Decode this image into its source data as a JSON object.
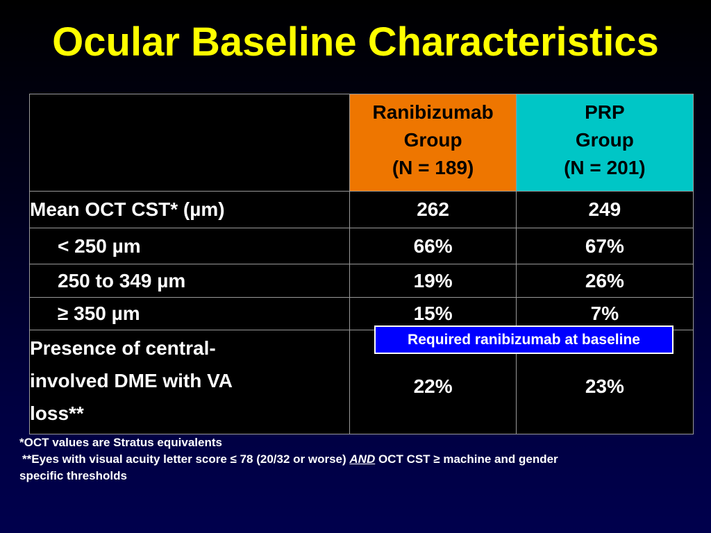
{
  "title": "Ocular Baseline Characteristics",
  "table": {
    "columns": [
      {
        "line1": "Ranibizumab",
        "line2": "Group",
        "line3": "(N = 189)"
      },
      {
        "line1": "PRP",
        "line2": "Group",
        "line3": "(N = 201)"
      }
    ],
    "rows": [
      {
        "label": "Mean OCT CST* (µm)",
        "ranibizumab": "262",
        "prp": "249"
      },
      {
        "label": "< 250 µm",
        "ranibizumab": "66%",
        "prp": "67%"
      },
      {
        "label": "250 to 349 µm",
        "ranibizumab": "19%",
        "prp": "26%"
      },
      {
        "label": "≥ 350 µm",
        "ranibizumab": "15%",
        "prp": "7%"
      },
      {
        "label_line1": "Presence of central-",
        "label_line2": "involved DME with VA",
        "label_line3": "loss**",
        "ranibizumab": "22%",
        "prp": "23%"
      }
    ]
  },
  "callout": "Required ranibizumab at baseline",
  "footnotes": {
    "note1": "*OCT values are Stratus equivalents",
    "note2_part1": "**Eyes with visual acuity letter score ≤ 78 (20/32 or worse) ",
    "note2_and": "AND",
    "note2_part2": " OCT CST ≥ machine and gender",
    "note3": "specific thresholds"
  },
  "colors": {
    "title": "#ffff00",
    "ranibizumab_header": "#ee7600",
    "prp_header": "#00c6c6",
    "callout_bg": "#0000ff"
  }
}
